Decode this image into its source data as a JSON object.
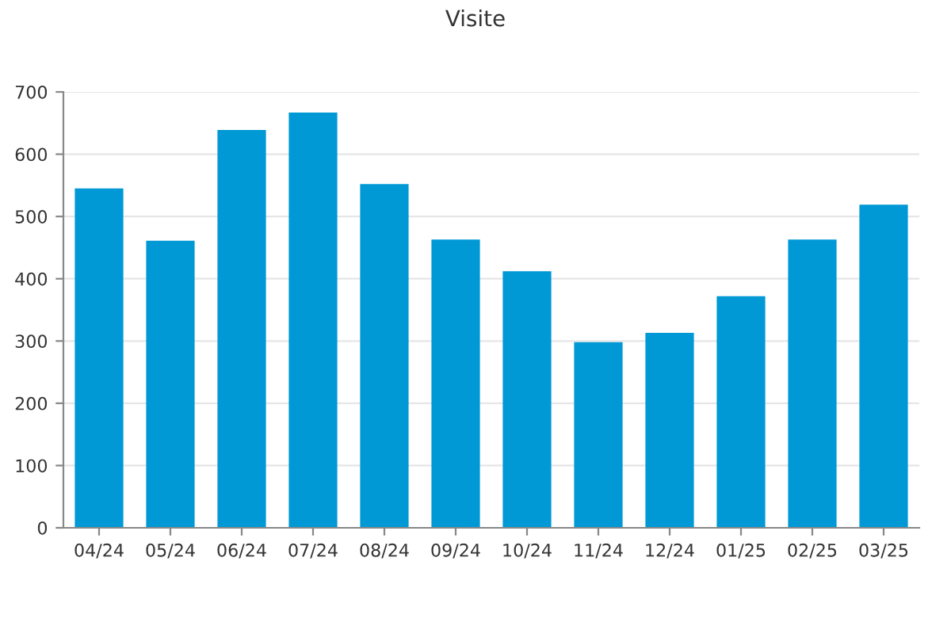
{
  "chart_data": {
    "type": "bar",
    "title": "Visite",
    "categories": [
      "04/24",
      "05/24",
      "06/24",
      "07/24",
      "08/24",
      "09/24",
      "10/24",
      "11/24",
      "12/24",
      "01/25",
      "02/25",
      "03/25"
    ],
    "series": [
      {
        "color": "#0099d5",
        "values": [
          545,
          461,
          639,
          667,
          552,
          463,
          412,
          298,
          313,
          372,
          463,
          519
        ]
      }
    ],
    "ylim": [
      0,
      700
    ],
    "yticks": [
      0,
      100,
      200,
      300,
      400,
      500,
      600,
      700
    ],
    "grid": "y"
  }
}
